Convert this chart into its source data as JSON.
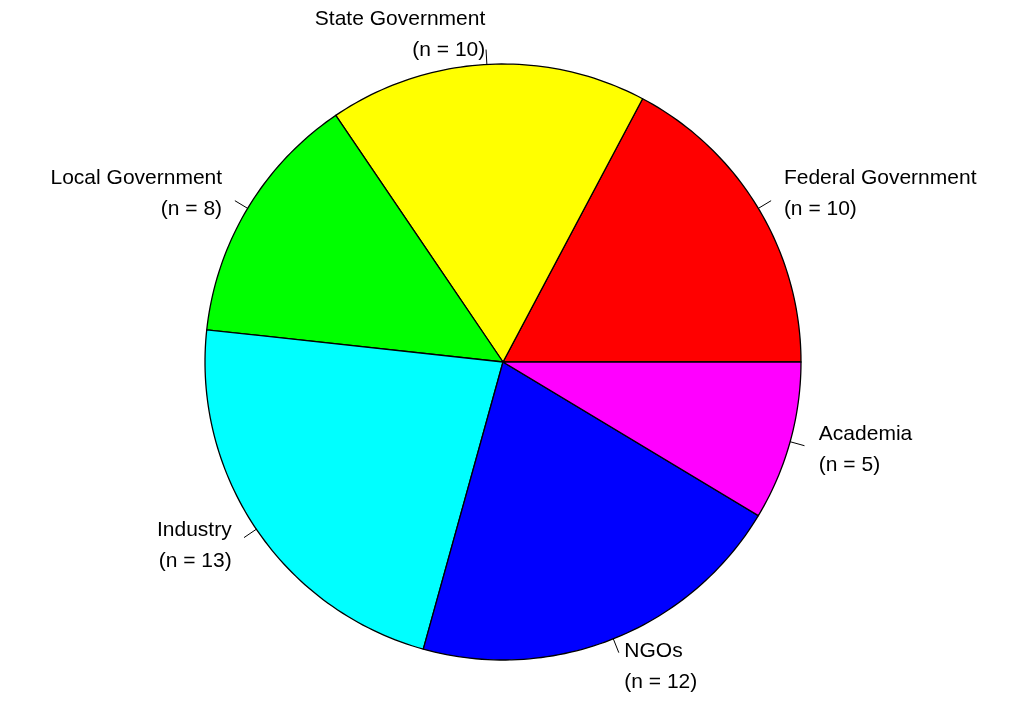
{
  "chart_data": {
    "type": "pie",
    "categories": [
      "Federal Government",
      "State Government",
      "Local Government",
      "Industry",
      "NGOs",
      "Academia"
    ],
    "values": [
      10,
      10,
      8,
      13,
      12,
      5
    ],
    "value_labels": [
      "(n = 10)",
      "(n = 10)",
      "(n = 8)",
      "(n = 13)",
      "(n = 12)",
      "(n = 5)"
    ],
    "colors": [
      "#ff0000",
      "#ffff00",
      "#00ff00",
      "#00ffff",
      "#0000ff",
      "#ff00ff"
    ]
  }
}
